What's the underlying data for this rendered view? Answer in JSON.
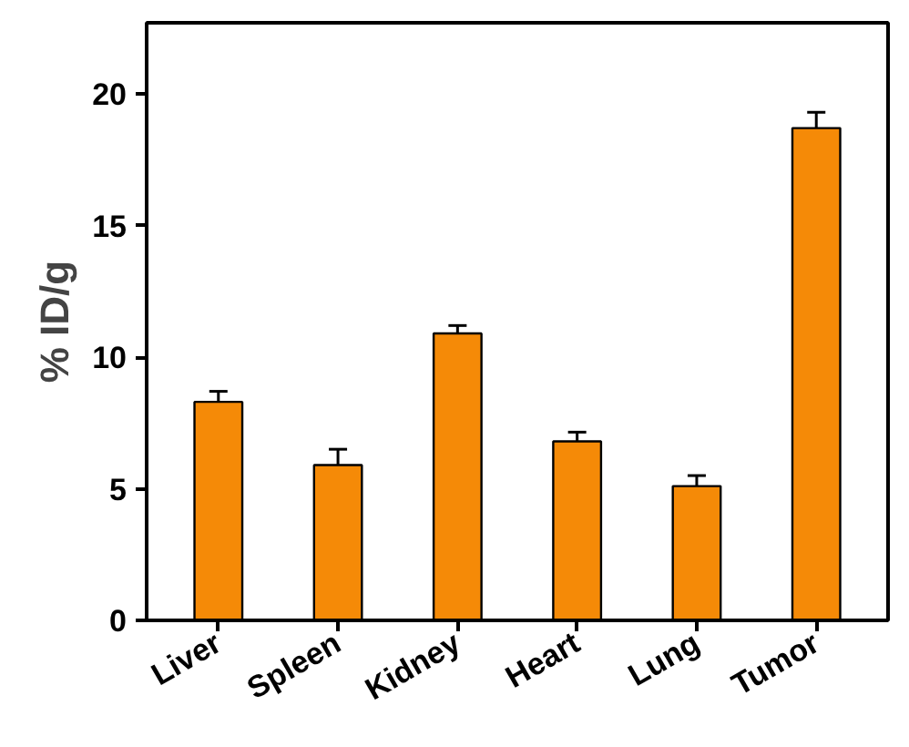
{
  "chart_data": {
    "type": "bar",
    "ylabel": "% ID/g",
    "categories": [
      "Liver",
      "Spleen",
      "Kidney",
      "Heart",
      "Lung",
      "Tumor"
    ],
    "values": [
      8.3,
      5.9,
      10.9,
      6.8,
      5.1,
      18.7
    ],
    "errors": [
      0.4,
      0.6,
      0.3,
      0.35,
      0.4,
      0.6
    ],
    "color": "#f58a07",
    "ylim": [
      0,
      22.7
    ],
    "yticks": [
      0,
      5,
      10,
      15,
      20
    ],
    "grid": false
  }
}
